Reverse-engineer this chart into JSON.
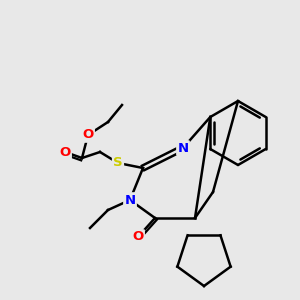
{
  "background_color": "#e8e8e8",
  "atom_colors": {
    "N": "#0000ff",
    "O": "#ff0000",
    "S": "#cccc00",
    "C": "#000000"
  },
  "bond_color": "#000000",
  "bond_width": 1.8,
  "figsize": [
    3.0,
    3.0
  ],
  "dpi": 100
}
